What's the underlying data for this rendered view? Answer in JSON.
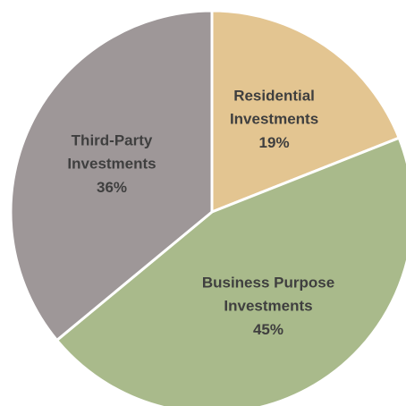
{
  "chart_data": {
    "type": "pie",
    "categories": [
      "Residential Investments",
      "Business Purpose Investments",
      "Third-Party Investments"
    ],
    "values": [
      19,
      45,
      36
    ],
    "value_labels": [
      "19%",
      "45%",
      "36%"
    ],
    "colors": [
      "#e3c591",
      "#a9ba8b",
      "#9e9798"
    ]
  }
}
